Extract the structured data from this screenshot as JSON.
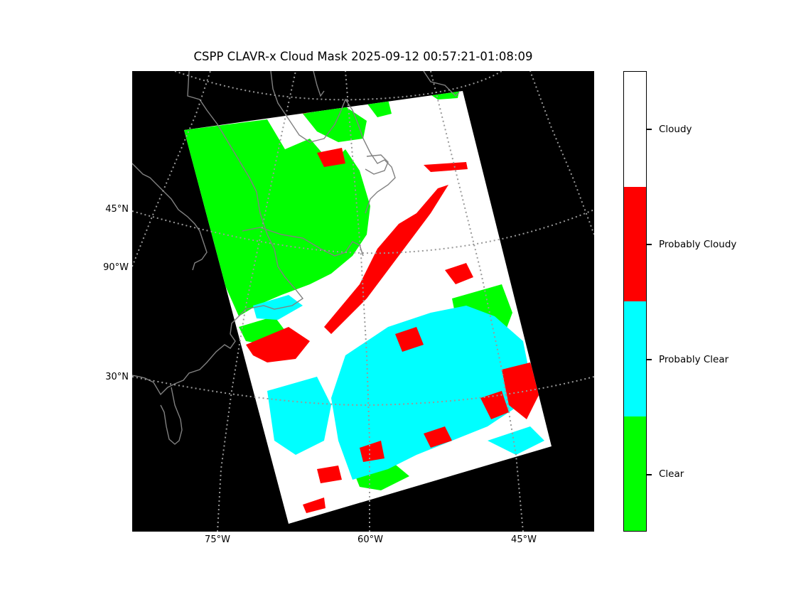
{
  "title": "CSPP CLAVR-x Cloud Mask 2025-09-12 00:57:21-01:08:09",
  "map": {
    "lat_labels": [
      {
        "text": "45°N"
      },
      {
        "text": "90°W"
      },
      {
        "text": "30°N"
      }
    ],
    "lon_labels": [
      {
        "text": "75°W"
      },
      {
        "text": "60°W"
      },
      {
        "text": "45°W"
      }
    ],
    "colors": {
      "background": "#000000",
      "coastline": "#808080",
      "graticule": "#999999"
    }
  },
  "colorbar": {
    "categories": [
      {
        "label": "Cloudy",
        "color": "#ffffff"
      },
      {
        "label": "Probably Cloudy",
        "color": "#ff0000"
      },
      {
        "label": "Probably Clear",
        "color": "#00ffff"
      },
      {
        "label": "Clear",
        "color": "#00ff00"
      }
    ]
  }
}
